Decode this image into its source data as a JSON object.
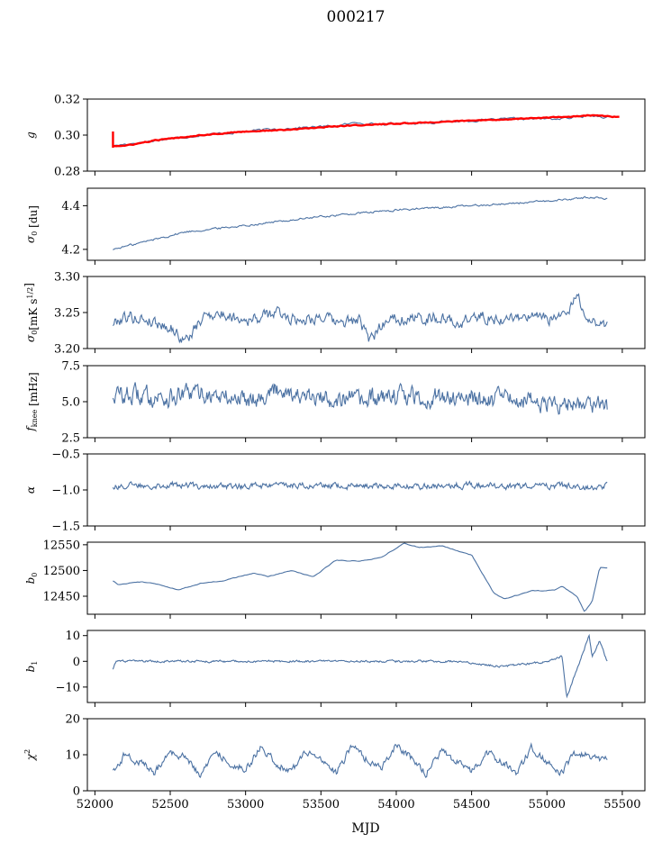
{
  "figure": {
    "title": "000217",
    "xlabel": "MJD"
  },
  "colors": {
    "series": "#4c72a3",
    "model": "#ff0000"
  },
  "chart_data": [
    {
      "type": "line",
      "id": "g",
      "ylabel": "g",
      "ylim": [
        0.28,
        0.32
      ],
      "yticks": [
        0.28,
        0.3,
        0.32
      ],
      "ytick_labels": [
        "0.28",
        "0.30",
        "0.32"
      ],
      "xlim": [
        51950,
        55650
      ],
      "xticks": [
        52000,
        52500,
        53000,
        53500,
        54000,
        54500,
        55000,
        55500
      ],
      "xtick_labels_shown": false,
      "series": [
        {
          "role": "data",
          "x": [
            52120,
            52200,
            52400,
            52700,
            53000,
            53300,
            53600,
            53750,
            53900,
            54200,
            54500,
            54800,
            55100,
            55300,
            55400
          ],
          "values": [
            0.294,
            0.295,
            0.297,
            0.3,
            0.302,
            0.304,
            0.305,
            0.307,
            0.306,
            0.307,
            0.308,
            0.309,
            0.309,
            0.311,
            0.31
          ]
        },
        {
          "role": "model",
          "x": [
            52120,
            52200,
            52400,
            52700,
            53000,
            53300,
            53600,
            53900,
            54200,
            54500,
            54800,
            55100,
            55300,
            55480
          ],
          "values": [
            0.294,
            0.294,
            0.297,
            0.3,
            0.302,
            0.303,
            0.305,
            0.306,
            0.307,
            0.308,
            0.309,
            0.31,
            0.311,
            0.31
          ]
        }
      ]
    },
    {
      "type": "line",
      "id": "sigma0",
      "ylabel": "σ0 [du]",
      "ylim": [
        4.15,
        4.48
      ],
      "yticks": [
        4.2,
        4.4
      ],
      "ytick_labels": [
        "4.2",
        "4.4"
      ],
      "xlim": [
        51950,
        55650
      ],
      "xticks": [
        52000,
        52500,
        53000,
        53500,
        54000,
        54500,
        55000,
        55500
      ],
      "xtick_labels_shown": false,
      "series": [
        {
          "x": [
            52120,
            52300,
            52600,
            53000,
            53500,
            54000,
            54500,
            55000,
            55300,
            55400
          ],
          "values": [
            4.2,
            4.23,
            4.28,
            4.31,
            4.35,
            4.38,
            4.4,
            4.42,
            4.44,
            4.43
          ]
        }
      ]
    },
    {
      "type": "line",
      "id": "sigma0-noise",
      "ylabel": "σ0[mK s1/2]",
      "ylim": [
        3.2,
        3.3
      ],
      "yticks": [
        3.2,
        3.25,
        3.3
      ],
      "ytick_labels": [
        "3.20",
        "3.25",
        "3.30"
      ],
      "xlim": [
        51950,
        55650
      ],
      "xticks": [
        52000,
        52500,
        53000,
        53500,
        54000,
        54500,
        55000,
        55500
      ],
      "xtick_labels_shown": false,
      "series": [
        {
          "x": [
            52120,
            52200,
            52350,
            52500,
            52600,
            52750,
            52900,
            53050,
            53200,
            53350,
            53500,
            53600,
            53750,
            53820,
            53950,
            54100,
            54250,
            54400,
            54550,
            54700,
            54850,
            55000,
            55150,
            55200,
            55280,
            55400
          ],
          "values": [
            3.235,
            3.245,
            3.24,
            3.23,
            3.21,
            3.25,
            3.245,
            3.24,
            3.25,
            3.24,
            3.245,
            3.235,
            3.24,
            3.21,
            3.245,
            3.24,
            3.245,
            3.235,
            3.245,
            3.24,
            3.245,
            3.24,
            3.25,
            3.275,
            3.24,
            3.23
          ]
        }
      ]
    },
    {
      "type": "line",
      "id": "fknee",
      "ylabel": "fknee [mHz]",
      "ylim": [
        2.5,
        7.5
      ],
      "yticks": [
        2.5,
        5.0,
        7.5
      ],
      "ytick_labels": [
        "2.5",
        "5.0",
        "7.5"
      ],
      "xlim": [
        51950,
        55650
      ],
      "xticks": [
        52000,
        52500,
        53000,
        53500,
        54000,
        54500,
        55000,
        55500
      ],
      "xtick_labels_shown": false,
      "series": [
        {
          "x": [
            52120,
            52300,
            52500,
            52700,
            52900,
            53100,
            53250,
            53400,
            53600,
            53800,
            54000,
            54200,
            54400,
            54600,
            54800,
            55000,
            55200,
            55400
          ],
          "values": [
            5.5,
            5.4,
            5.3,
            5.6,
            5.2,
            5.4,
            6.0,
            5.1,
            5.3,
            5.0,
            5.5,
            5.2,
            5.4,
            5.1,
            5.2,
            4.9,
            5.0,
            4.8
          ]
        }
      ]
    },
    {
      "type": "line",
      "id": "alpha",
      "ylabel": "α",
      "ylim": [
        -1.5,
        -0.5
      ],
      "yticks": [
        -1.5,
        -1.0,
        -0.5
      ],
      "ytick_labels": [
        "−1.5",
        "−1.0",
        "−0.5"
      ],
      "xlim": [
        51950,
        55650
      ],
      "xticks": [
        52000,
        52500,
        53000,
        53500,
        54000,
        54500,
        55000,
        55500
      ],
      "xtick_labels_shown": false,
      "series": [
        {
          "x": [
            52120,
            52400,
            52700,
            53000,
            53300,
            53600,
            53900,
            54200,
            54500,
            54800,
            55100,
            55300,
            55400
          ],
          "values": [
            -0.95,
            -0.93,
            -0.94,
            -0.95,
            -0.93,
            -0.95,
            -0.94,
            -0.95,
            -0.93,
            -0.95,
            -0.94,
            -0.98,
            -0.93
          ]
        }
      ]
    },
    {
      "type": "line",
      "id": "b0",
      "ylabel": "b0",
      "ylim": [
        12415,
        12555
      ],
      "yticks": [
        12450,
        12500,
        12550
      ],
      "ytick_labels": [
        "12450",
        "12500",
        "12550"
      ],
      "xlim": [
        51950,
        55650
      ],
      "xticks": [
        52000,
        52500,
        53000,
        53500,
        54000,
        54500,
        55000,
        55500
      ],
      "xtick_labels_shown": false,
      "series": [
        {
          "x": [
            52120,
            52150,
            52300,
            52400,
            52550,
            52700,
            52850,
            53050,
            53150,
            53300,
            53450,
            53600,
            53750,
            53900,
            54050,
            54150,
            54300,
            54500,
            54650,
            54720,
            54900,
            55050,
            55100,
            55200,
            55250,
            55300,
            55350,
            55400
          ],
          "values": [
            12480,
            12473,
            12478,
            12475,
            12462,
            12475,
            12480,
            12495,
            12488,
            12500,
            12488,
            12520,
            12518,
            12525,
            12553,
            12545,
            12548,
            12530,
            12455,
            12445,
            12460,
            12462,
            12470,
            12450,
            12420,
            12440,
            12505,
            12505
          ]
        }
      ]
    },
    {
      "type": "line",
      "id": "b1",
      "ylabel": "b1",
      "ylim": [
        -16,
        12
      ],
      "yticks": [
        -10,
        0,
        10
      ],
      "ytick_labels": [
        "−10",
        "0",
        "10"
      ],
      "xlim": [
        51950,
        55650
      ],
      "xticks": [
        52000,
        52500,
        53000,
        53500,
        54000,
        54500,
        55000,
        55500
      ],
      "xtick_labels_shown": false,
      "series": [
        {
          "x": [
            52120,
            52140,
            52400,
            52800,
            53200,
            53600,
            54000,
            54400,
            54700,
            55000,
            55100,
            55130,
            55200,
            55280,
            55300,
            55350,
            55400
          ],
          "values": [
            -3,
            0,
            0,
            0,
            0,
            0,
            0,
            0,
            -2,
            0,
            2,
            -14,
            -3,
            10,
            2,
            8,
            0
          ]
        }
      ]
    },
    {
      "type": "line",
      "id": "chi2",
      "ylabel": "χ2",
      "ylim": [
        0,
        20
      ],
      "yticks": [
        0,
        10,
        20
      ],
      "ytick_labels": [
        "0",
        "10",
        "20"
      ],
      "xlim": [
        51950,
        55650
      ],
      "xticks": [
        52000,
        52500,
        53000,
        53500,
        54000,
        54500,
        55000,
        55500
      ],
      "xtick_labels": [
        "52000",
        "52500",
        "53000",
        "53500",
        "54000",
        "54500",
        "55000",
        "55500"
      ],
      "xtick_labels_shown": true,
      "series": [
        {
          "x": [
            52120,
            52200,
            52300,
            52400,
            52500,
            52600,
            52700,
            52800,
            52900,
            53000,
            53100,
            53200,
            53300,
            53400,
            53500,
            53600,
            53700,
            53800,
            53900,
            54000,
            54100,
            54200,
            54300,
            54400,
            54500,
            54600,
            54700,
            54800,
            54900,
            55000,
            55100,
            55200,
            55300,
            55400
          ],
          "values": [
            6,
            10,
            8,
            5,
            11,
            9,
            4,
            11,
            8,
            6,
            12,
            8,
            5,
            11,
            9,
            5,
            12,
            9,
            6,
            13,
            9,
            5,
            11,
            8,
            5,
            11,
            8,
            5,
            12,
            8,
            5,
            11,
            9,
            9
          ]
        }
      ]
    }
  ]
}
